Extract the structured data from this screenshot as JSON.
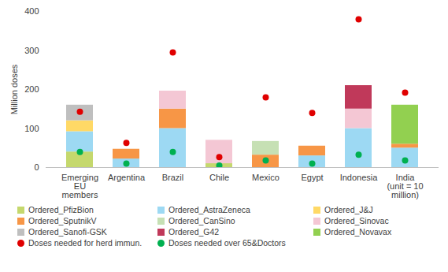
{
  "chart_data": {
    "type": "bar",
    "stacked": true,
    "grid": false,
    "legend": "bottom",
    "y_label": "Million doses",
    "categories": [
      "Emerging\nEU\nmembers",
      "Argentina",
      "Brazil",
      "Chile",
      "Mexico",
      "Egypt",
      "Indonesia",
      "India\n(unit = 10\nmillion)"
    ],
    "ylim": [
      0,
      400
    ],
    "yticks": [
      0,
      100,
      200,
      300,
      400
    ],
    "series": [
      {
        "name": "Ordered_PfizBion",
        "type": "bar",
        "color": "#c5d86d",
        "values": [
          40,
          0,
          0,
          10,
          0,
          0,
          0,
          0
        ]
      },
      {
        "name": "Ordered_AstraZeneca",
        "type": "bar",
        "color": "#9dd9f3",
        "values": [
          52,
          22,
          100,
          0,
          0,
          30,
          100,
          50
        ]
      },
      {
        "name": "Ordered_J&J",
        "type": "bar",
        "color": "#ffd966",
        "values": [
          28,
          0,
          0,
          0,
          0,
          0,
          0,
          0
        ]
      },
      {
        "name": "Ordered_SputnikV",
        "type": "bar",
        "color": "#f79646",
        "values": [
          0,
          25,
          50,
          0,
          32,
          25,
          0,
          10
        ]
      },
      {
        "name": "Ordered_CanSino",
        "type": "bar",
        "color": "#c6e0b4",
        "values": [
          0,
          0,
          0,
          0,
          35,
          0,
          0,
          0
        ]
      },
      {
        "name": "Ordered_Sinovac",
        "type": "bar",
        "color": "#f4c7d4",
        "values": [
          0,
          0,
          46,
          60,
          0,
          0,
          50,
          0
        ]
      },
      {
        "name": "Ordered_Sanofi-GSK",
        "type": "bar",
        "color": "#bfbfbf",
        "values": [
          40,
          0,
          0,
          0,
          0,
          0,
          0,
          0
        ]
      },
      {
        "name": "Ordered_G42",
        "type": "bar",
        "color": "#c0395a",
        "values": [
          0,
          0,
          0,
          0,
          0,
          0,
          60,
          0
        ]
      },
      {
        "name": "Ordered_Novavax",
        "type": "bar",
        "color": "#92d050",
        "values": [
          0,
          0,
          0,
          0,
          0,
          0,
          0,
          100
        ]
      },
      {
        "name": "Doses needed for herd immun.",
        "type": "scatter",
        "marker": "circle",
        "color": "#e00000",
        "values": [
          143,
          63,
          295,
          27,
          180,
          140,
          380,
          192
        ]
      },
      {
        "name": "Doses needed over 65&Doctors",
        "type": "scatter",
        "marker": "circle",
        "color": "#00b050",
        "values": [
          40,
          10,
          40,
          5,
          18,
          10,
          33,
          18
        ]
      }
    ]
  }
}
